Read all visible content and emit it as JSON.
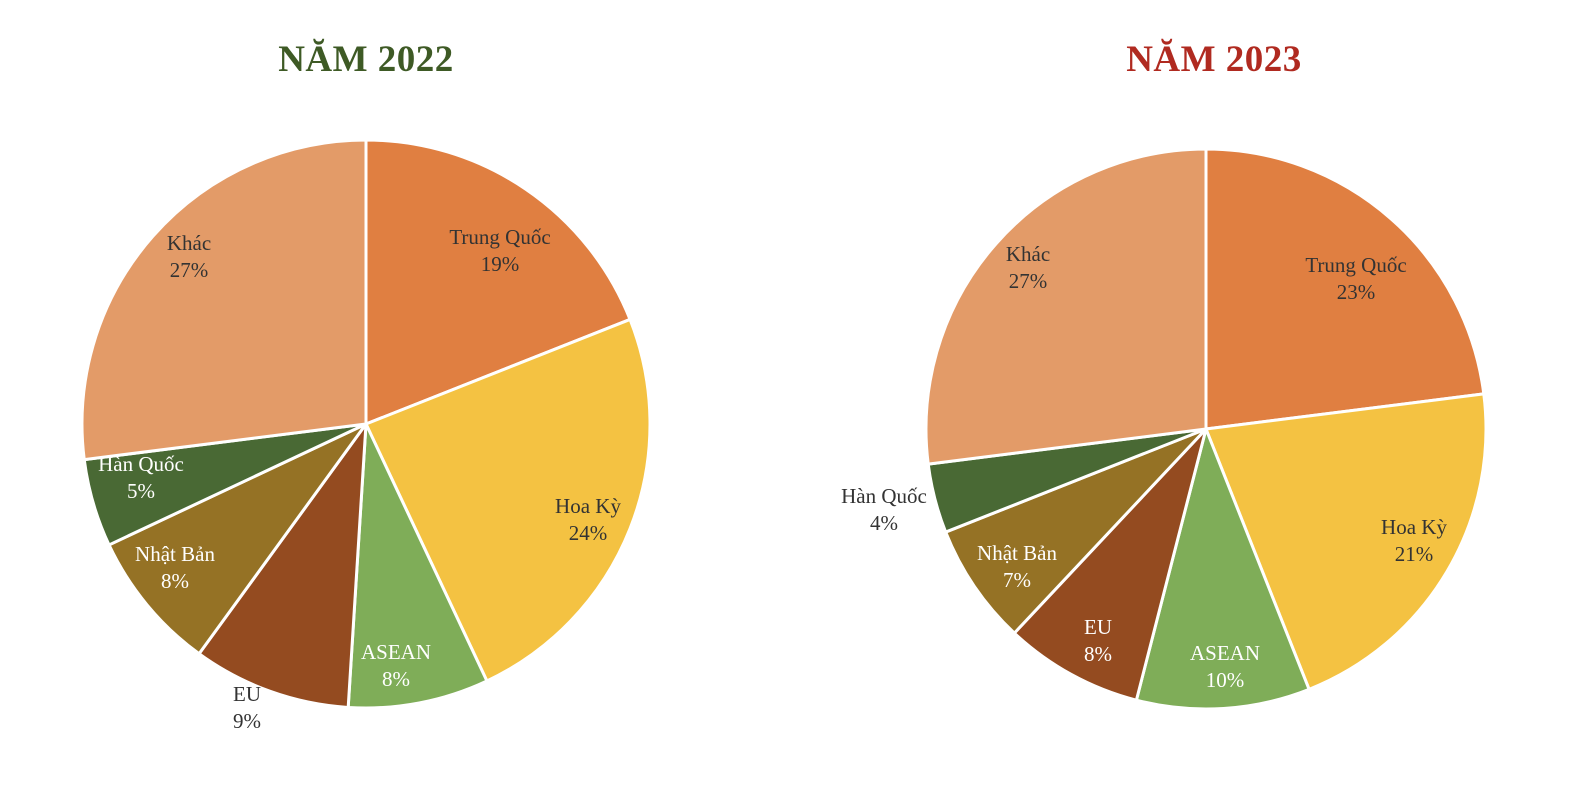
{
  "chart_data": [
    {
      "type": "pie",
      "title": "NĂM 2022",
      "title_color": "#3e5a25",
      "slices": [
        {
          "label": "Trung Quốc",
          "value": 19,
          "value_text": "19%",
          "color": "#e07f41",
          "text_color": "#333333"
        },
        {
          "label": "Hoa Kỳ",
          "value": 24,
          "value_text": "24%",
          "color": "#f4c242",
          "text_color": "#333333"
        },
        {
          "label": "ASEAN",
          "value": 8,
          "value_text": "8%",
          "color": "#7fad58",
          "text_color": "#ffffff"
        },
        {
          "label": "EU",
          "value": 9,
          "value_text": "9%",
          "color": "#944b20",
          "text_color": "#333333"
        },
        {
          "label": "Nhật Bản",
          "value": 8,
          "value_text": "8%",
          "color": "#957225",
          "text_color": "#ffffff"
        },
        {
          "label": "Hàn Quốc",
          "value": 5,
          "value_text": "5%",
          "color": "#496934",
          "text_color": "#ffffff"
        },
        {
          "label": "Khác",
          "value": 27,
          "value_text": "27%",
          "color": "#e39b68",
          "text_color": "#333333"
        }
      ]
    },
    {
      "type": "pie",
      "title": "NĂM 2023",
      "title_color": "#b02a20",
      "slices": [
        {
          "label": "Trung Quốc",
          "value": 23,
          "value_text": "23%",
          "color": "#e07f41",
          "text_color": "#333333"
        },
        {
          "label": "Hoa Kỳ",
          "value": 21,
          "value_text": "21%",
          "color": "#f4c242",
          "text_color": "#333333"
        },
        {
          "label": "ASEAN",
          "value": 10,
          "value_text": "10%",
          "color": "#7fad58",
          "text_color": "#ffffff"
        },
        {
          "label": "EU",
          "value": 8,
          "value_text": "8%",
          "color": "#944b20",
          "text_color": "#ffffff"
        },
        {
          "label": "Nhật Bản",
          "value": 7,
          "value_text": "7%",
          "color": "#957225",
          "text_color": "#ffffff"
        },
        {
          "label": "Hàn Quốc",
          "value": 4,
          "value_text": "4%",
          "color": "#496934",
          "text_color": "#333333"
        },
        {
          "label": "Khác",
          "value": 27,
          "value_text": "27%",
          "color": "#e39b68",
          "text_color": "#333333"
        }
      ]
    }
  ]
}
